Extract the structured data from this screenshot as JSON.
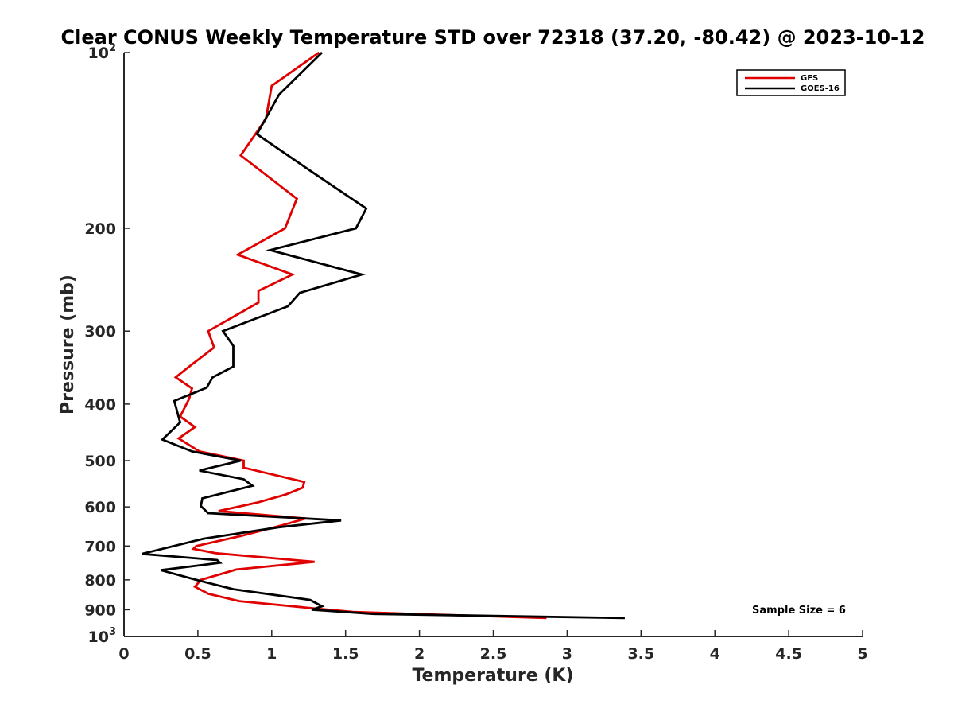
{
  "chart_data": {
    "type": "line",
    "title": "Clear CONUS Weekly Temperature STD over 72318 (37.20, -80.42) @ 2023-10-12",
    "xlabel": "Temperature (K)",
    "ylabel": "Pressure (mb)",
    "xlim": [
      0,
      5
    ],
    "ylim": [
      100,
      1000
    ],
    "y_scale": "log",
    "y_reversed": true,
    "grid": false,
    "legend_position": "top-right",
    "x_ticks": [
      "0",
      "0.5",
      "1",
      "1.5",
      "2",
      "2.5",
      "3",
      "3.5",
      "4",
      "4.5",
      "5"
    ],
    "y_ticks": [
      {
        "value": 100,
        "label": "10",
        "sup": "2"
      },
      {
        "value": 200,
        "label": "200",
        "sup": ""
      },
      {
        "value": 300,
        "label": "300",
        "sup": ""
      },
      {
        "value": 400,
        "label": "400",
        "sup": ""
      },
      {
        "value": 500,
        "label": "500",
        "sup": ""
      },
      {
        "value": 600,
        "label": "600",
        "sup": ""
      },
      {
        "value": 700,
        "label": "700",
        "sup": ""
      },
      {
        "value": 800,
        "label": "800",
        "sup": ""
      },
      {
        "value": 900,
        "label": "900",
        "sup": ""
      },
      {
        "value": 1000,
        "label": "10",
        "sup": "3"
      }
    ],
    "annotation": "Sample Size = 6",
    "series": [
      {
        "name": "GFS",
        "color": "#e00000",
        "points": [
          [
            1.32,
            100
          ],
          [
            1.0,
            114
          ],
          [
            0.96,
            130
          ],
          [
            0.79,
            150
          ],
          [
            1.17,
            178
          ],
          [
            1.09,
            200
          ],
          [
            0.77,
            222
          ],
          [
            1.14,
            240
          ],
          [
            0.91,
            256
          ],
          [
            0.91,
            268
          ],
          [
            0.57,
            300
          ],
          [
            0.61,
            320
          ],
          [
            0.46,
            342
          ],
          [
            0.35,
            360
          ],
          [
            0.46,
            376
          ],
          [
            0.44,
            392
          ],
          [
            0.38,
            420
          ],
          [
            0.48,
            438
          ],
          [
            0.37,
            458
          ],
          [
            0.51,
            482
          ],
          [
            0.81,
            500
          ],
          [
            0.81,
            514
          ],
          [
            1.22,
            544
          ],
          [
            1.21,
            556
          ],
          [
            1.09,
            572
          ],
          [
            0.9,
            590
          ],
          [
            0.64,
            610
          ],
          [
            1.23,
            628
          ],
          [
            1.07,
            645
          ],
          [
            0.79,
            673
          ],
          [
            0.49,
            700
          ],
          [
            0.47,
            708
          ],
          [
            0.62,
            720
          ],
          [
            1.29,
            745
          ],
          [
            0.76,
            768
          ],
          [
            0.52,
            800
          ],
          [
            0.48,
            822
          ],
          [
            0.57,
            845
          ],
          [
            0.78,
            870
          ],
          [
            1.28,
            895
          ],
          [
            1.55,
            908
          ],
          [
            2.86,
            930
          ]
        ]
      },
      {
        "name": "GOES-16",
        "color": "#000000",
        "points": [
          [
            1.34,
            100
          ],
          [
            1.05,
            118
          ],
          [
            0.9,
            138
          ],
          [
            1.27,
            160
          ],
          [
            1.64,
            185
          ],
          [
            1.57,
            200
          ],
          [
            0.99,
            218
          ],
          [
            1.61,
            240
          ],
          [
            1.19,
            258
          ],
          [
            1.11,
            272
          ],
          [
            0.67,
            300
          ],
          [
            0.74,
            318
          ],
          [
            0.74,
            345
          ],
          [
            0.6,
            360
          ],
          [
            0.56,
            375
          ],
          [
            0.34,
            395
          ],
          [
            0.38,
            430
          ],
          [
            0.26,
            460
          ],
          [
            0.46,
            482
          ],
          [
            0.79,
            500
          ],
          [
            0.51,
            520
          ],
          [
            0.81,
            538
          ],
          [
            0.87,
            552
          ],
          [
            0.53,
            580
          ],
          [
            0.52,
            598
          ],
          [
            0.57,
            615
          ],
          [
            1.47,
            633
          ],
          [
            1.05,
            650
          ],
          [
            0.54,
            680
          ],
          [
            0.12,
            722
          ],
          [
            0.63,
            740
          ],
          [
            0.65,
            748
          ],
          [
            0.25,
            770
          ],
          [
            0.49,
            800
          ],
          [
            0.74,
            830
          ],
          [
            1.26,
            866
          ],
          [
            1.34,
            888
          ],
          [
            1.27,
            900
          ],
          [
            1.69,
            915
          ],
          [
            3.39,
            930
          ]
        ]
      }
    ]
  }
}
